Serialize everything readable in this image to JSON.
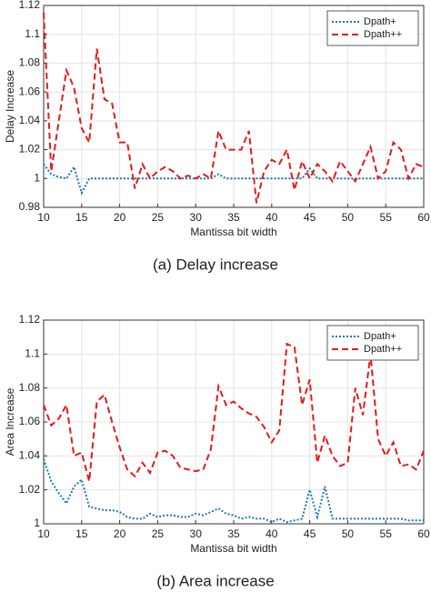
{
  "chart_data": [
    {
      "type": "line",
      "caption": "(a) Delay increase",
      "xlabel": "Mantissa bit width",
      "ylabel": "Delay Increase",
      "x": [
        10,
        11,
        12,
        13,
        14,
        15,
        16,
        17,
        18,
        19,
        20,
        21,
        22,
        23,
        24,
        25,
        26,
        27,
        28,
        29,
        30,
        31,
        32,
        33,
        34,
        35,
        36,
        37,
        38,
        39,
        40,
        41,
        42,
        43,
        44,
        45,
        46,
        47,
        48,
        49,
        50,
        51,
        52,
        53,
        54,
        55,
        56,
        57,
        58,
        59,
        60
      ],
      "series": [
        {
          "name": "Dpath+",
          "color": "#1f77b4",
          "style": "dotted",
          "values": [
            1.01,
            1.003,
            1.001,
            1.0,
            1.008,
            0.99,
            1.0,
            1.0,
            1.0,
            1.0,
            1.0,
            1.0,
            1.0,
            1.0,
            1.0,
            1.0,
            1.0,
            1.0,
            1.0,
            1.0,
            1.0,
            1.0,
            1.0,
            1.003,
            1.0,
            1.0,
            1.0,
            1.0,
            1.0,
            1.0,
            1.0,
            1.0,
            1.0,
            1.0,
            1.0,
            1.007,
            1.0,
            1.0,
            1.0,
            1.0,
            1.0,
            1.0,
            1.0,
            1.0,
            1.0,
            1.0,
            1.0,
            1.0,
            1.0,
            1.0,
            1.0
          ]
        },
        {
          "name": "Dpath++",
          "color": "#e41a1c",
          "style": "dashed",
          "values": [
            1.115,
            1.005,
            1.04,
            1.075,
            1.063,
            1.035,
            1.025,
            1.09,
            1.055,
            1.052,
            1.025,
            1.025,
            0.993,
            1.01,
            1.0,
            1.005,
            1.008,
            1.005,
            1.0,
            1.002,
            1.0,
            1.003,
            1.0,
            1.033,
            1.02,
            1.02,
            1.02,
            1.033,
            0.983,
            1.005,
            1.013,
            1.01,
            1.02,
            0.992,
            1.012,
            1.0,
            1.01,
            1.005,
            0.998,
            1.012,
            1.005,
            0.998,
            1.01,
            1.022,
            1.0,
            1.005,
            1.025,
            1.02,
            1.0,
            1.01,
            1.008
          ]
        }
      ],
      "xlim": [
        10,
        60
      ],
      "xticks": [
        10,
        15,
        20,
        25,
        30,
        35,
        40,
        45,
        50,
        55,
        60
      ],
      "ylim": [
        0.98,
        1.12
      ],
      "yticks": [
        0.98,
        1,
        1.02,
        1.04,
        1.06,
        1.08,
        1.1,
        1.12
      ],
      "grid": true,
      "legend": "upper right"
    },
    {
      "type": "line",
      "caption": "(b) Area increase",
      "xlabel": "Mantissa bit width",
      "ylabel": "Area Increase",
      "x": [
        10,
        11,
        12,
        13,
        14,
        15,
        16,
        17,
        18,
        19,
        20,
        21,
        22,
        23,
        24,
        25,
        26,
        27,
        28,
        29,
        30,
        31,
        32,
        33,
        34,
        35,
        36,
        37,
        38,
        39,
        40,
        41,
        42,
        43,
        44,
        45,
        46,
        47,
        48,
        49,
        50,
        51,
        52,
        53,
        54,
        55,
        56,
        57,
        58,
        59,
        60
      ],
      "series": [
        {
          "name": "Dpath+",
          "color": "#1f77b4",
          "style": "dotted",
          "values": [
            1.038,
            1.025,
            1.018,
            1.012,
            1.022,
            1.026,
            1.01,
            1.009,
            1.008,
            1.008,
            1.007,
            1.004,
            1.003,
            1.003,
            1.006,
            1.004,
            1.005,
            1.005,
            1.004,
            1.004,
            1.006,
            1.005,
            1.007,
            1.009,
            1.006,
            1.005,
            1.003,
            1.004,
            1.003,
            1.003,
            1.001,
            1.003,
            1.001,
            1.002,
            1.003,
            1.02,
            1.004,
            1.022,
            1.003,
            1.003,
            1.003,
            1.003,
            1.003,
            1.003,
            1.003,
            1.003,
            1.003,
            1.003,
            1.002,
            1.002,
            1.002
          ]
        },
        {
          "name": "Dpath++",
          "color": "#e41a1c",
          "style": "dashed",
          "values": [
            1.07,
            1.058,
            1.062,
            1.07,
            1.04,
            1.042,
            1.025,
            1.072,
            1.076,
            1.06,
            1.045,
            1.032,
            1.028,
            1.036,
            1.03,
            1.042,
            1.043,
            1.04,
            1.033,
            1.032,
            1.031,
            1.032,
            1.044,
            1.081,
            1.07,
            1.072,
            1.068,
            1.065,
            1.063,
            1.057,
            1.048,
            1.055,
            1.106,
            1.104,
            1.07,
            1.085,
            1.036,
            1.052,
            1.04,
            1.034,
            1.036,
            1.08,
            1.064,
            1.1,
            1.05,
            1.04,
            1.048,
            1.034,
            1.035,
            1.032,
            1.043
          ]
        }
      ],
      "xlim": [
        10,
        60
      ],
      "xticks": [
        10,
        15,
        20,
        25,
        30,
        35,
        40,
        45,
        50,
        55,
        60
      ],
      "ylim": [
        1,
        1.12
      ],
      "yticks": [
        1,
        1.02,
        1.04,
        1.06,
        1.08,
        1.1,
        1.12
      ],
      "grid": true,
      "legend": "upper right"
    }
  ]
}
